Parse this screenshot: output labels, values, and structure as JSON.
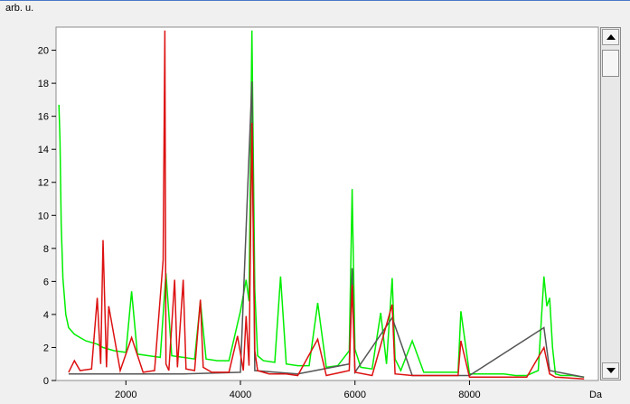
{
  "chart_data": {
    "type": "line",
    "ylabel": "arb. u.",
    "xunit": "Da",
    "xlim": [
      780,
      10250
    ],
    "ylim": [
      0,
      21.4
    ],
    "xticks": [
      2000,
      4000,
      6000,
      8000
    ],
    "yticks": [
      0,
      2,
      4,
      6,
      8,
      10,
      12,
      14,
      16,
      18,
      20
    ],
    "grid": false,
    "series": [
      {
        "color": "#00ee00",
        "x": [
          830,
          850,
          870,
          900,
          950,
          1000,
          1100,
          1200,
          1300,
          1500,
          1600,
          1800,
          2000,
          2100,
          2200,
          2400,
          2600,
          2700,
          2800,
          3000,
          3200,
          3300,
          3400,
          3600,
          3800,
          4000,
          4100,
          4150,
          4200,
          4250,
          4300,
          4400,
          4600,
          4700,
          4800,
          5000,
          5200,
          5350,
          5500,
          5700,
          5900,
          5950,
          6000,
          6100,
          6300,
          6450,
          6550,
          6650,
          6700,
          6800,
          7000,
          7200,
          7400,
          7600,
          7800,
          7850,
          8000,
          8200,
          8400,
          8600,
          8800,
          9000,
          9200,
          9300,
          9350,
          9400,
          9450,
          9500,
          9600,
          9800,
          10000
        ],
        "y": [
          16.7,
          14.5,
          9.5,
          6.2,
          4.0,
          3.2,
          2.8,
          2.6,
          2.4,
          2.2,
          2.0,
          1.8,
          1.7,
          5.4,
          1.6,
          1.5,
          1.4,
          6.5,
          1.5,
          1.4,
          1.3,
          4.8,
          1.3,
          1.2,
          1.2,
          4.2,
          6.1,
          4.8,
          21.2,
          5.5,
          1.5,
          1.2,
          1.1,
          6.3,
          1.0,
          0.9,
          0.9,
          4.7,
          0.8,
          0.9,
          1.8,
          11.6,
          1.9,
          0.8,
          0.7,
          4.1,
          1.0,
          6.2,
          1.3,
          0.6,
          2.4,
          0.5,
          0.5,
          0.5,
          0.5,
          4.2,
          0.4,
          0.4,
          0.4,
          0.4,
          0.3,
          0.3,
          0.6,
          6.3,
          4.5,
          5.0,
          2.0,
          0.4,
          0.3,
          0.3,
          0.2
        ]
      },
      {
        "color": "#555555",
        "x": [
          1000,
          2000,
          3000,
          4000,
          4200,
          4250,
          5000,
          5900,
          5950,
          6000,
          6650,
          7000,
          8000,
          9300,
          9400,
          10000
        ],
        "y": [
          0.4,
          0.4,
          0.4,
          0.5,
          18.1,
          0.6,
          0.4,
          1.0,
          6.8,
          0.5,
          3.8,
          0.3,
          0.3,
          3.2,
          0.6,
          0.2
        ]
      },
      {
        "color": "#dd1111",
        "x": [
          1000,
          1100,
          1200,
          1400,
          1500,
          1560,
          1600,
          1660,
          1700,
          1900,
          2100,
          2300,
          2500,
          2650,
          2680,
          2700,
          2750,
          2850,
          2900,
          3000,
          3050,
          3200,
          3300,
          3350,
          3500,
          3800,
          3950,
          4050,
          4100,
          4150,
          4200,
          4250,
          4300,
          4500,
          4800,
          5000,
          5350,
          5500,
          5900,
          5950,
          6000,
          6300,
          6650,
          6700,
          7000,
          7500,
          7800,
          7850,
          8000,
          8500,
          9000,
          9300,
          9400,
          9500,
          10000
        ],
        "y": [
          0.5,
          1.2,
          0.6,
          0.7,
          5.0,
          1.0,
          8.5,
          0.8,
          4.5,
          0.6,
          2.6,
          0.5,
          0.6,
          7.3,
          21.2,
          1.0,
          0.6,
          6.1,
          0.8,
          6.1,
          0.7,
          0.6,
          4.9,
          0.8,
          0.5,
          0.5,
          2.7,
          0.6,
          3.9,
          0.9,
          15.6,
          1.8,
          0.6,
          0.4,
          0.4,
          0.3,
          2.5,
          0.3,
          0.6,
          5.8,
          0.5,
          0.3,
          4.6,
          0.4,
          0.3,
          0.3,
          0.3,
          2.4,
          0.2,
          0.2,
          0.2,
          2.0,
          0.4,
          0.2,
          0.1
        ]
      }
    ]
  },
  "colors": {
    "background": "#ffffff",
    "frame": "#f0f0f0",
    "window_border": "#4a78c8"
  },
  "scrollbar": {
    "up_icon": "triangle-up-icon",
    "down_icon": "triangle-down-icon"
  }
}
